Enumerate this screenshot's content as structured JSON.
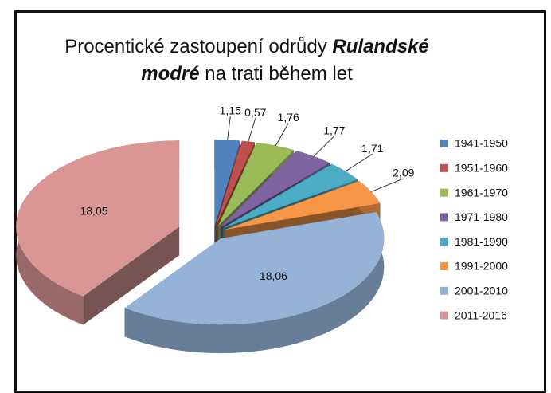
{
  "chart_data": {
    "type": "pie3d",
    "title": [
      "Procentické zastoupení odrůdy",
      "Rulandské",
      "modré",
      "na trati během let"
    ],
    "categories": [
      "1941-1950",
      "1951-1960",
      "1961-1970",
      "1971-1980",
      "1981-1990",
      "1991-2000",
      "2001-2010",
      "2011-2016"
    ],
    "values": [
      1.15,
      0.57,
      1.76,
      1.77,
      1.71,
      2.09,
      18.06,
      18.05
    ],
    "value_labels": [
      "1,15",
      "0,57",
      "1,76",
      "1,77",
      "1,71",
      "2,09",
      "18,06",
      "18,05"
    ],
    "colors": [
      "#4f81bd",
      "#c0504d",
      "#9bbb59",
      "#8064a2",
      "#4bacc6",
      "#f79646",
      "#95b3d7",
      "#d99694"
    ],
    "legend": "right"
  }
}
